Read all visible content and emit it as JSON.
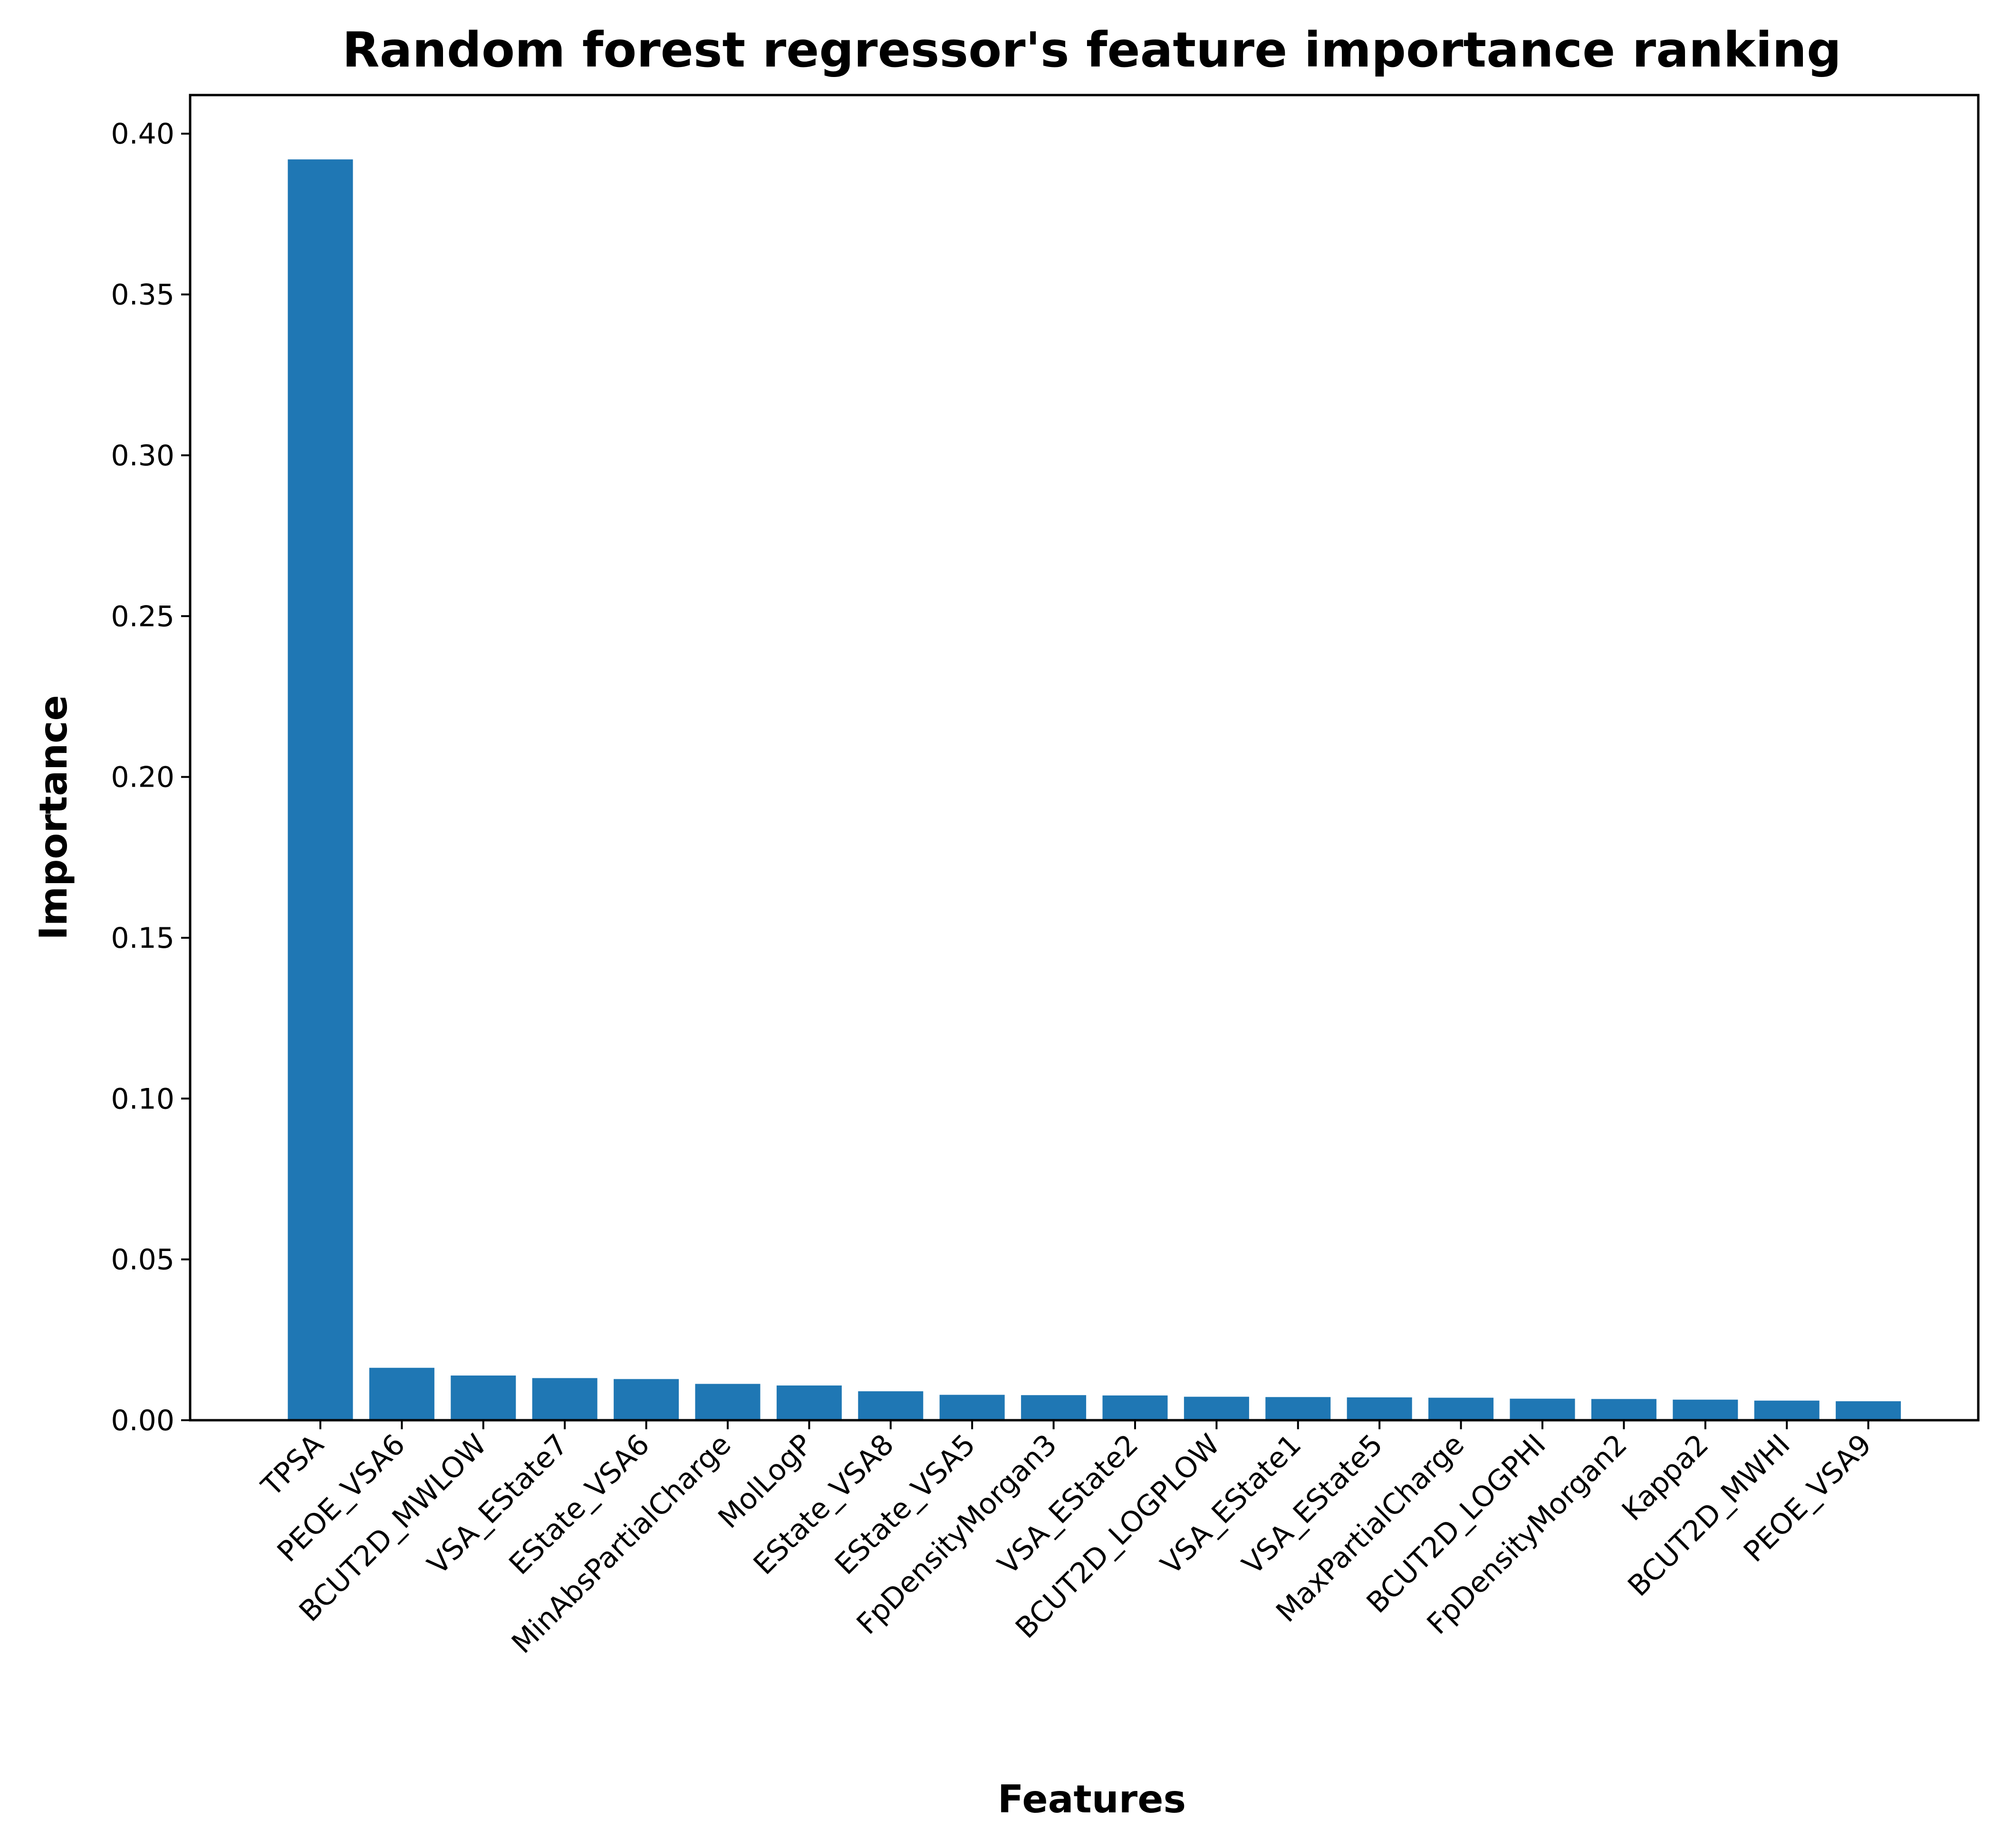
{
  "chart_data": {
    "type": "bar",
    "title": "Random forest regressor's feature importance ranking",
    "xlabel": "Features",
    "ylabel": "Importance",
    "ylim": [
      0,
      0.412
    ],
    "yticks": [
      0.0,
      0.05,
      0.1,
      0.15,
      0.2,
      0.25,
      0.3,
      0.35,
      0.4
    ],
    "ytick_labels": [
      "0.00",
      "0.05",
      "0.10",
      "0.15",
      "0.20",
      "0.25",
      "0.30",
      "0.35",
      "0.40"
    ],
    "grid": false,
    "legend": "none",
    "bar_color": "#1f77b4",
    "categories": [
      "TPSA",
      "PEOE_VSA6",
      "BCUT2D_MWLOW",
      "VSA_EState7",
      "EState_VSA6",
      "MinAbsPartialCharge",
      "MolLogP",
      "EState_VSA8",
      "EState_VSA5",
      "FpDensityMorgan3",
      "VSA_EState2",
      "BCUT2D_LOGPLOW",
      "VSA_EState1",
      "VSA_EState5",
      "MaxPartialCharge",
      "BCUT2D_LOGPHI",
      "FpDensityMorgan2",
      "Kappa2",
      "BCUT2D_MWHI",
      "PEOE_VSA9"
    ],
    "values": [
      0.392,
      0.0163,
      0.0139,
      0.0131,
      0.0128,
      0.0113,
      0.0108,
      0.009,
      0.0079,
      0.0078,
      0.0077,
      0.0073,
      0.0072,
      0.0071,
      0.007,
      0.0067,
      0.0066,
      0.0064,
      0.0061,
      0.0059
    ]
  }
}
